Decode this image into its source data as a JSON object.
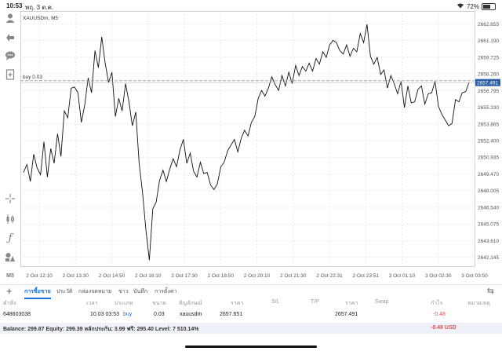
{
  "status": {
    "time": "10:53",
    "date": "พฤ. 3 ต.ค.",
    "battery": "72%",
    "battery_level": 0.72
  },
  "toolbar": {
    "icons": [
      "user-icon",
      "trade-icon",
      "chat-icon",
      "new-file-icon",
      "crosshair-icon",
      "candles-icon",
      "function-icon",
      "objects-icon",
      "timeframe-icon"
    ],
    "timeframe_label": "M5"
  },
  "chart_data": {
    "type": "line",
    "symbol_label": "XAUUSDm, M5",
    "order_line_label": "buy 0.03",
    "order_price": 2657.651,
    "current_price_label": "2657.491",
    "current_price": 2657.491,
    "ylim": [
      2641.3,
      2663.5
    ],
    "y_ticks": [
      "2662.655",
      "2661.190",
      "2659.725",
      "2658.260",
      "2656.795",
      "2655.330",
      "2653.865",
      "2652.400",
      "2650.935",
      "2649.470",
      "2648.005",
      "2646.540",
      "2645.075",
      "2643.610",
      "2642.145"
    ],
    "x_ticks": [
      "2 Oct 12:10",
      "2 Oct 13:30",
      "2 Oct 14:50",
      "2 Oct 16:10",
      "2 Oct 17:30",
      "2 Oct 18:50",
      "2 Oct 20:10",
      "2 Oct 21:30",
      "2 Oct 22:31",
      "2 Oct 23:51",
      "3 Oct 01:10",
      "3 Oct 02:30",
      "3 Oct 03:50"
    ],
    "values": [
      2649.6,
      2650.3,
      2648.8,
      2651.2,
      2650.0,
      2649.4,
      2652.3,
      2649.2,
      2651.7,
      2650.4,
      2653.0,
      2651.0,
      2655.0,
      2654.4,
      2657.0,
      2657.1,
      2656.6,
      2654.0,
      2655.5,
      2657.9,
      2656.6,
      2660.3,
      2658.8,
      2661.5,
      2659.2,
      2657.5,
      2658.4,
      2654.5,
      2656.1,
      2655.0,
      2657.4,
      2655.8,
      2653.7,
      2654.9,
      2650.4,
      2647.8,
      2644.5,
      2641.9,
      2646.4,
      2647.0,
      2648.9,
      2649.8,
      2648.8,
      2649.9,
      2650.8,
      2650.1,
      2651.6,
      2652.5,
      2650.4,
      2651.3,
      2649.7,
      2649.2,
      2650.5,
      2649.5,
      2649.6,
      2648.5,
      2648.1,
      2648.6,
      2650.1,
      2650.5,
      2651.5,
      2652.0,
      2652.5,
      2651.4,
      2652.6,
      2653.3,
      2652.8,
      2654.0,
      2654.5,
      2656.1,
      2656.8,
      2656.3,
      2657.0,
      2658.0,
      2657.3,
      2656.8,
      2658.1,
      2657.2,
      2658.4,
      2657.4,
      2659.0,
      2658.1,
      2658.9,
      2658.5,
      2659.2,
      2658.5,
      2659.6,
      2659.1,
      2660.2,
      2659.7,
      2660.8,
      2661.2,
      2661.0,
      2660.3,
      2660.0,
      2660.8,
      2659.8,
      2660.5,
      2660.2,
      2661.8,
      2661.0,
      2662.6,
      2659.8,
      2659.1,
      2659.7,
      2658.2,
      2658.6,
      2657.0,
      2658.1,
      2657.4,
      2656.5,
      2657.6,
      2655.3,
      2657.2,
      2655.7,
      2655.8,
      2656.9,
      2657.2,
      2655.6,
      2656.5,
      2656.6,
      2657.6,
      2655.4,
      2654.7,
      2654.2,
      2653.7,
      2653.9,
      2656.0,
      2655.8,
      2656.6,
      2656.7,
      2657.5
    ]
  },
  "tabs": [
    "การซื้อขาย",
    "ประวัติ",
    "กล่องจดหมาย",
    "ข่าว",
    "บันทึก",
    "การตั้งค่า"
  ],
  "table": {
    "columns": [
      "คำสั่ง",
      "เวลา",
      "ประเภท",
      "ขนาด",
      "สัญลักษณ์",
      "ราคา",
      "S/L",
      "T/P",
      "ราคา",
      "Swap",
      "กำไร",
      "หมายเหตุ"
    ],
    "rows": [
      {
        "order": "648603038",
        "time": "10.03 03:53",
        "type": "buy",
        "size": "0.03",
        "symbol": "xauusdm",
        "price": "2657.651",
        "sl": "",
        "tp": "",
        "current": "2657.491",
        "swap": "",
        "profit": "-0.48",
        "comment": ""
      }
    ]
  },
  "balance": {
    "text": "Balance: 299.87 Equity: 299.39 หลักประกัน: 3.99 ฟรี: 295.40 Level: 7 510.14%",
    "total": "-0.48 USD"
  },
  "colors": {
    "accent": "#1a6fd6",
    "negative": "#e05050",
    "grid": "#e9e9e9",
    "price_tag": "#2a5fa8"
  }
}
